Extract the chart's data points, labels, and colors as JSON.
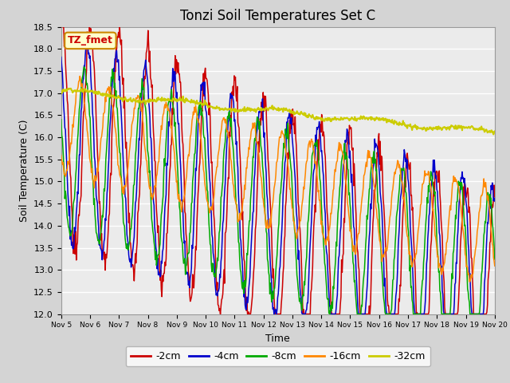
{
  "title": "Tonzi Soil Temperatures Set C",
  "xlabel": "Time",
  "ylabel": "Soil Temperature (C)",
  "ylim": [
    12.0,
    18.5
  ],
  "yticks": [
    12.0,
    12.5,
    13.0,
    13.5,
    14.0,
    14.5,
    15.0,
    15.5,
    16.0,
    16.5,
    17.0,
    17.5,
    18.0,
    18.5
  ],
  "xtick_labels": [
    "Nov 5",
    "Nov 6",
    "Nov 7",
    "Nov 8",
    "Nov 9",
    "Nov 10",
    "Nov 11",
    "Nov 12",
    "Nov 13",
    "Nov 14",
    "Nov 15",
    "Nov 16",
    "Nov 17",
    "Nov 18",
    "Nov 19",
    "Nov 20"
  ],
  "colors": {
    "-2cm": "#cc0000",
    "-4cm": "#0000cc",
    "-8cm": "#00aa00",
    "-16cm": "#ff8800",
    "-32cm": "#cccc00"
  },
  "legend_labels": [
    "-2cm",
    "-4cm",
    "-8cm",
    "-16cm",
    "-32cm"
  ],
  "annotation_text": "TZ_fmet",
  "annotation_color": "#cc0000",
  "annotation_bg": "#ffffcc",
  "annotation_border": "#cc8800",
  "plot_bg_color": "#ebebeb",
  "grid_color": "#ffffff",
  "title_fontsize": 12,
  "axis_fontsize": 9,
  "tick_fontsize": 8
}
